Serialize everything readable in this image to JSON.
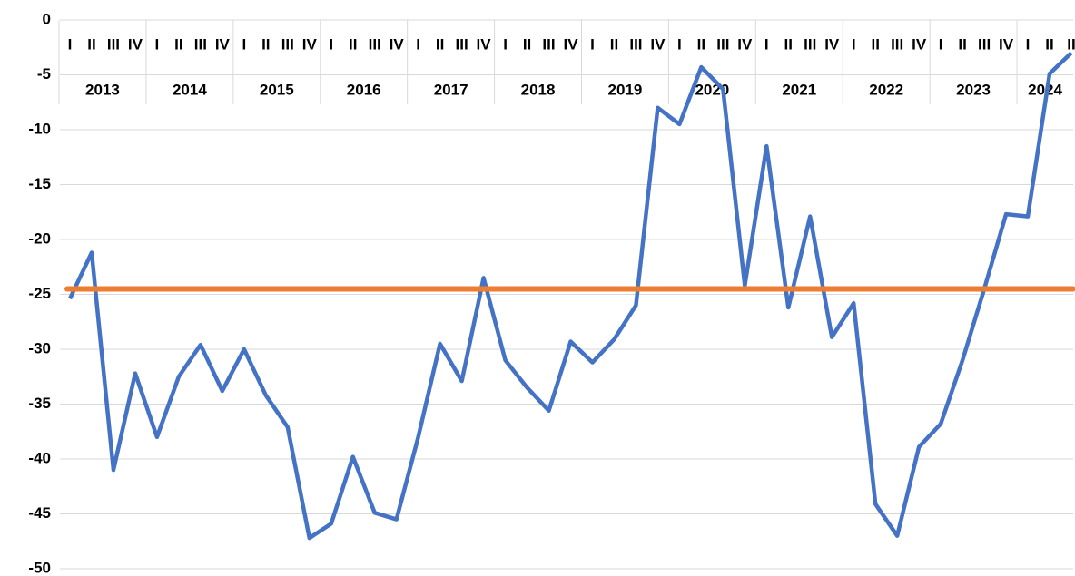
{
  "chart_data": {
    "type": "line",
    "categories": [
      "I",
      "II",
      "III",
      "IV",
      "I",
      "II",
      "III",
      "IV",
      "I",
      "II",
      "III",
      "IV",
      "I",
      "II",
      "III",
      "IV",
      "I",
      "II",
      "III",
      "IV",
      "I",
      "II",
      "III",
      "IV",
      "I",
      "II",
      "III",
      "IV",
      "I",
      "II",
      "III",
      "IV",
      "I",
      "II",
      "III",
      "IV",
      "I",
      "II",
      "III",
      "IV",
      "I",
      "II",
      "III",
      "IV",
      "I",
      "II",
      "II"
    ],
    "years": [
      "2013",
      "2014",
      "2015",
      "2016",
      "2017",
      "2018",
      "2019",
      "2020",
      "2021",
      "2022",
      "2023",
      "2024"
    ],
    "series": [
      {
        "color": "#4472c4",
        "values": [
          -25.4,
          -21.2,
          -41,
          -32.2,
          -38,
          -32.5,
          -29.6,
          -33.8,
          -30,
          -34.2,
          -37.1,
          -47.2,
          -45.9,
          -39.8,
          -44.9,
          -45.5,
          -38,
          -29.5,
          -32.9,
          -23.5,
          -31,
          -33.5,
          -35.6,
          -29.3,
          -31.2,
          -29.1,
          -26,
          -8,
          -9.5,
          -4.3,
          -6.3,
          -24.2,
          -11.5,
          -26.2,
          -17.9,
          -28.9,
          -25.8,
          -44.1,
          -47,
          -38.9,
          -36.8,
          -31,
          -24.5,
          -17.7,
          -17.9,
          -4.9,
          -3
        ]
      }
    ],
    "reference_line": {
      "value": -24.5,
      "color": "#ed7d31"
    },
    "ylim": [
      -50,
      0
    ],
    "yticks": [
      0,
      -5,
      -10,
      -15,
      -20,
      -25,
      -30,
      -35,
      -40,
      -45,
      -50
    ],
    "grid": true
  }
}
